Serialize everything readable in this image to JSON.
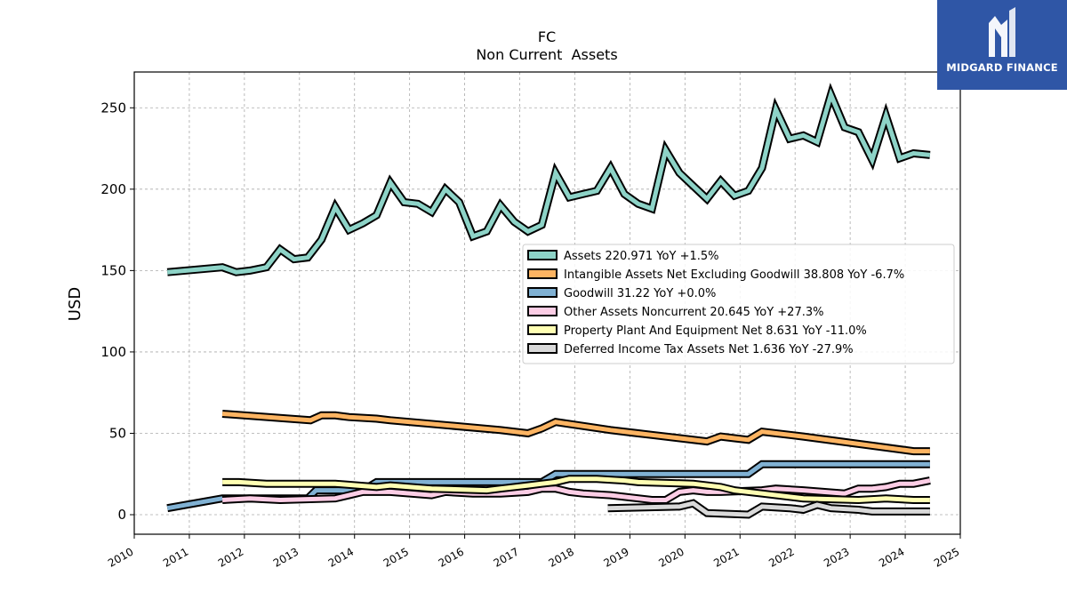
{
  "brand": {
    "name": "MIDGARD FINANCE",
    "logo_color": "#2f56a6"
  },
  "chart_data": {
    "type": "line",
    "title": "FC",
    "subtitle": "Non Current  Assets",
    "xlabel": "",
    "ylabel": "USD",
    "xlim": [
      2010,
      2025
    ],
    "ylim": [
      -12,
      272
    ],
    "x_ticks": [
      2010,
      2011,
      2012,
      2013,
      2014,
      2015,
      2016,
      2017,
      2018,
      2019,
      2020,
      2021,
      2022,
      2023,
      2024,
      2025
    ],
    "y_ticks": [
      0,
      50,
      100,
      150,
      200,
      250
    ],
    "grid": true,
    "legend_position": "center-right",
    "series": [
      {
        "name": "Assets",
        "legend": "Assets  220.971 YoY +1.5%",
        "color": "#8dd3c7",
        "x": [
          2010.6,
          2011.6,
          2011.85,
          2012.1,
          2012.4,
          2012.65,
          2012.9,
          2013.15,
          2013.4,
          2013.65,
          2013.9,
          2014.15,
          2014.4,
          2014.65,
          2014.9,
          2015.15,
          2015.4,
          2015.65,
          2015.9,
          2016.15,
          2016.4,
          2016.65,
          2016.9,
          2017.15,
          2017.4,
          2017.65,
          2017.9,
          2018.15,
          2018.4,
          2018.65,
          2018.9,
          2019.15,
          2019.4,
          2019.65,
          2019.9,
          2020.15,
          2020.4,
          2020.65,
          2020.9,
          2021.15,
          2021.4,
          2021.65,
          2021.9,
          2022.15,
          2022.4,
          2022.65,
          2022.9,
          2023.15,
          2023.4,
          2023.65,
          2023.9,
          2024.15,
          2024.45
        ],
        "values": [
          149,
          152,
          149,
          150,
          152,
          163,
          157,
          158,
          169,
          189,
          175,
          179,
          184,
          204,
          192,
          191,
          186,
          200,
          192,
          171,
          174,
          190,
          180,
          174,
          178,
          210,
          195,
          197,
          199,
          213,
          197,
          191,
          188,
          224,
          210,
          202,
          194,
          205,
          196,
          199,
          213,
          249,
          231,
          233,
          229,
          258,
          238,
          235,
          218,
          245,
          219,
          222,
          221
        ]
      },
      {
        "name": "Intangible Assets Net Excluding Goodwill",
        "legend": "Intangible Assets Net Excluding Goodwill  38.808 YoY -6.7%",
        "color": "#fdb462",
        "x": [
          2011.6,
          2013.2,
          2013.4,
          2013.65,
          2013.9,
          2014.4,
          2014.65,
          2016.65,
          2017.15,
          2017.4,
          2017.65,
          2018.65,
          2019.15,
          2019.4,
          2020.4,
          2020.65,
          2020.9,
          2021.15,
          2021.4,
          2022.15,
          2024.15,
          2024.45
        ],
        "values": [
          62,
          58,
          61,
          61,
          60,
          59,
          58,
          52,
          50,
          53,
          57,
          52,
          50,
          49,
          45,
          48,
          47,
          46,
          51,
          48,
          39,
          39
        ]
      },
      {
        "name": "Goodwill",
        "legend": "Goodwill  31.22 YoY +0.0%",
        "color": "#80b1d3",
        "x": [
          2010.6,
          2011.6,
          2013.15,
          2013.3,
          2014.15,
          2014.4,
          2017.4,
          2017.65,
          2021.15,
          2021.4,
          2024.45
        ],
        "values": [
          4,
          10,
          10,
          15,
          15,
          20,
          20,
          25,
          25,
          31,
          31
        ]
      },
      {
        "name": "Other Assets Noncurrent",
        "legend": "Other Assets Noncurrent  20.645 YoY +27.3%",
        "color": "#fccde5",
        "x": [
          2011.6,
          2012.1,
          2012.65,
          2013.65,
          2013.9,
          2014.15,
          2014.65,
          2015.4,
          2015.65,
          2016.15,
          2016.65,
          2017.15,
          2017.4,
          2017.65,
          2017.9,
          2018.15,
          2018.65,
          2019.15,
          2019.4,
          2019.65,
          2019.9,
          2020.15,
          2020.4,
          2020.65,
          2021.4,
          2021.65,
          2022.15,
          2022.9,
          2023.15,
          2023.4,
          2023.65,
          2023.9,
          2024.15,
          2024.45
        ],
        "values": [
          9,
          10,
          9,
          10,
          12,
          14,
          14,
          12,
          14,
          13,
          13,
          14,
          16,
          16,
          14,
          13,
          12,
          10,
          9,
          9,
          14,
          15,
          14,
          14,
          15,
          16,
          15,
          13,
          16,
          16,
          17,
          19,
          19,
          21
        ]
      },
      {
        "name": "Property Plant And Equipment Net",
        "legend": "Property Plant And Equipment Net  8.631 YoY -11.0%",
        "color": "#ffffb3",
        "x": [
          2011.6,
          2011.9,
          2012.4,
          2012.65,
          2013.15,
          2013.65,
          2014.4,
          2014.65,
          2015.4,
          2016.4,
          2016.65,
          2017.15,
          2017.4,
          2017.65,
          2017.9,
          2018.4,
          2018.9,
          2019.15,
          2020.15,
          2020.65,
          2020.9,
          2021.4,
          2022.15,
          2023.15,
          2023.65,
          2024.15,
          2024.45
        ],
        "values": [
          20,
          20,
          19,
          19,
          19,
          19,
          17,
          18,
          16,
          15,
          16,
          18,
          19,
          20,
          22,
          22,
          21,
          20,
          19,
          17,
          15,
          13,
          10,
          9,
          10,
          9,
          9
        ]
      },
      {
        "name": "Deferred Income Tax Assets Net",
        "legend": "Deferred Income Tax Assets Net  1.636 YoY -27.9%",
        "color": "#d9d9d9",
        "x": [
          2018.6,
          2019.9,
          2020.15,
          2020.4,
          2021.15,
          2021.4,
          2021.9,
          2022.15,
          2022.4,
          2022.65,
          2023.15,
          2023.4,
          2023.65,
          2024.45
        ],
        "values": [
          4,
          5,
          7,
          1,
          0,
          5,
          4,
          3,
          6,
          4,
          3,
          2,
          2,
          2
        ]
      }
    ]
  }
}
